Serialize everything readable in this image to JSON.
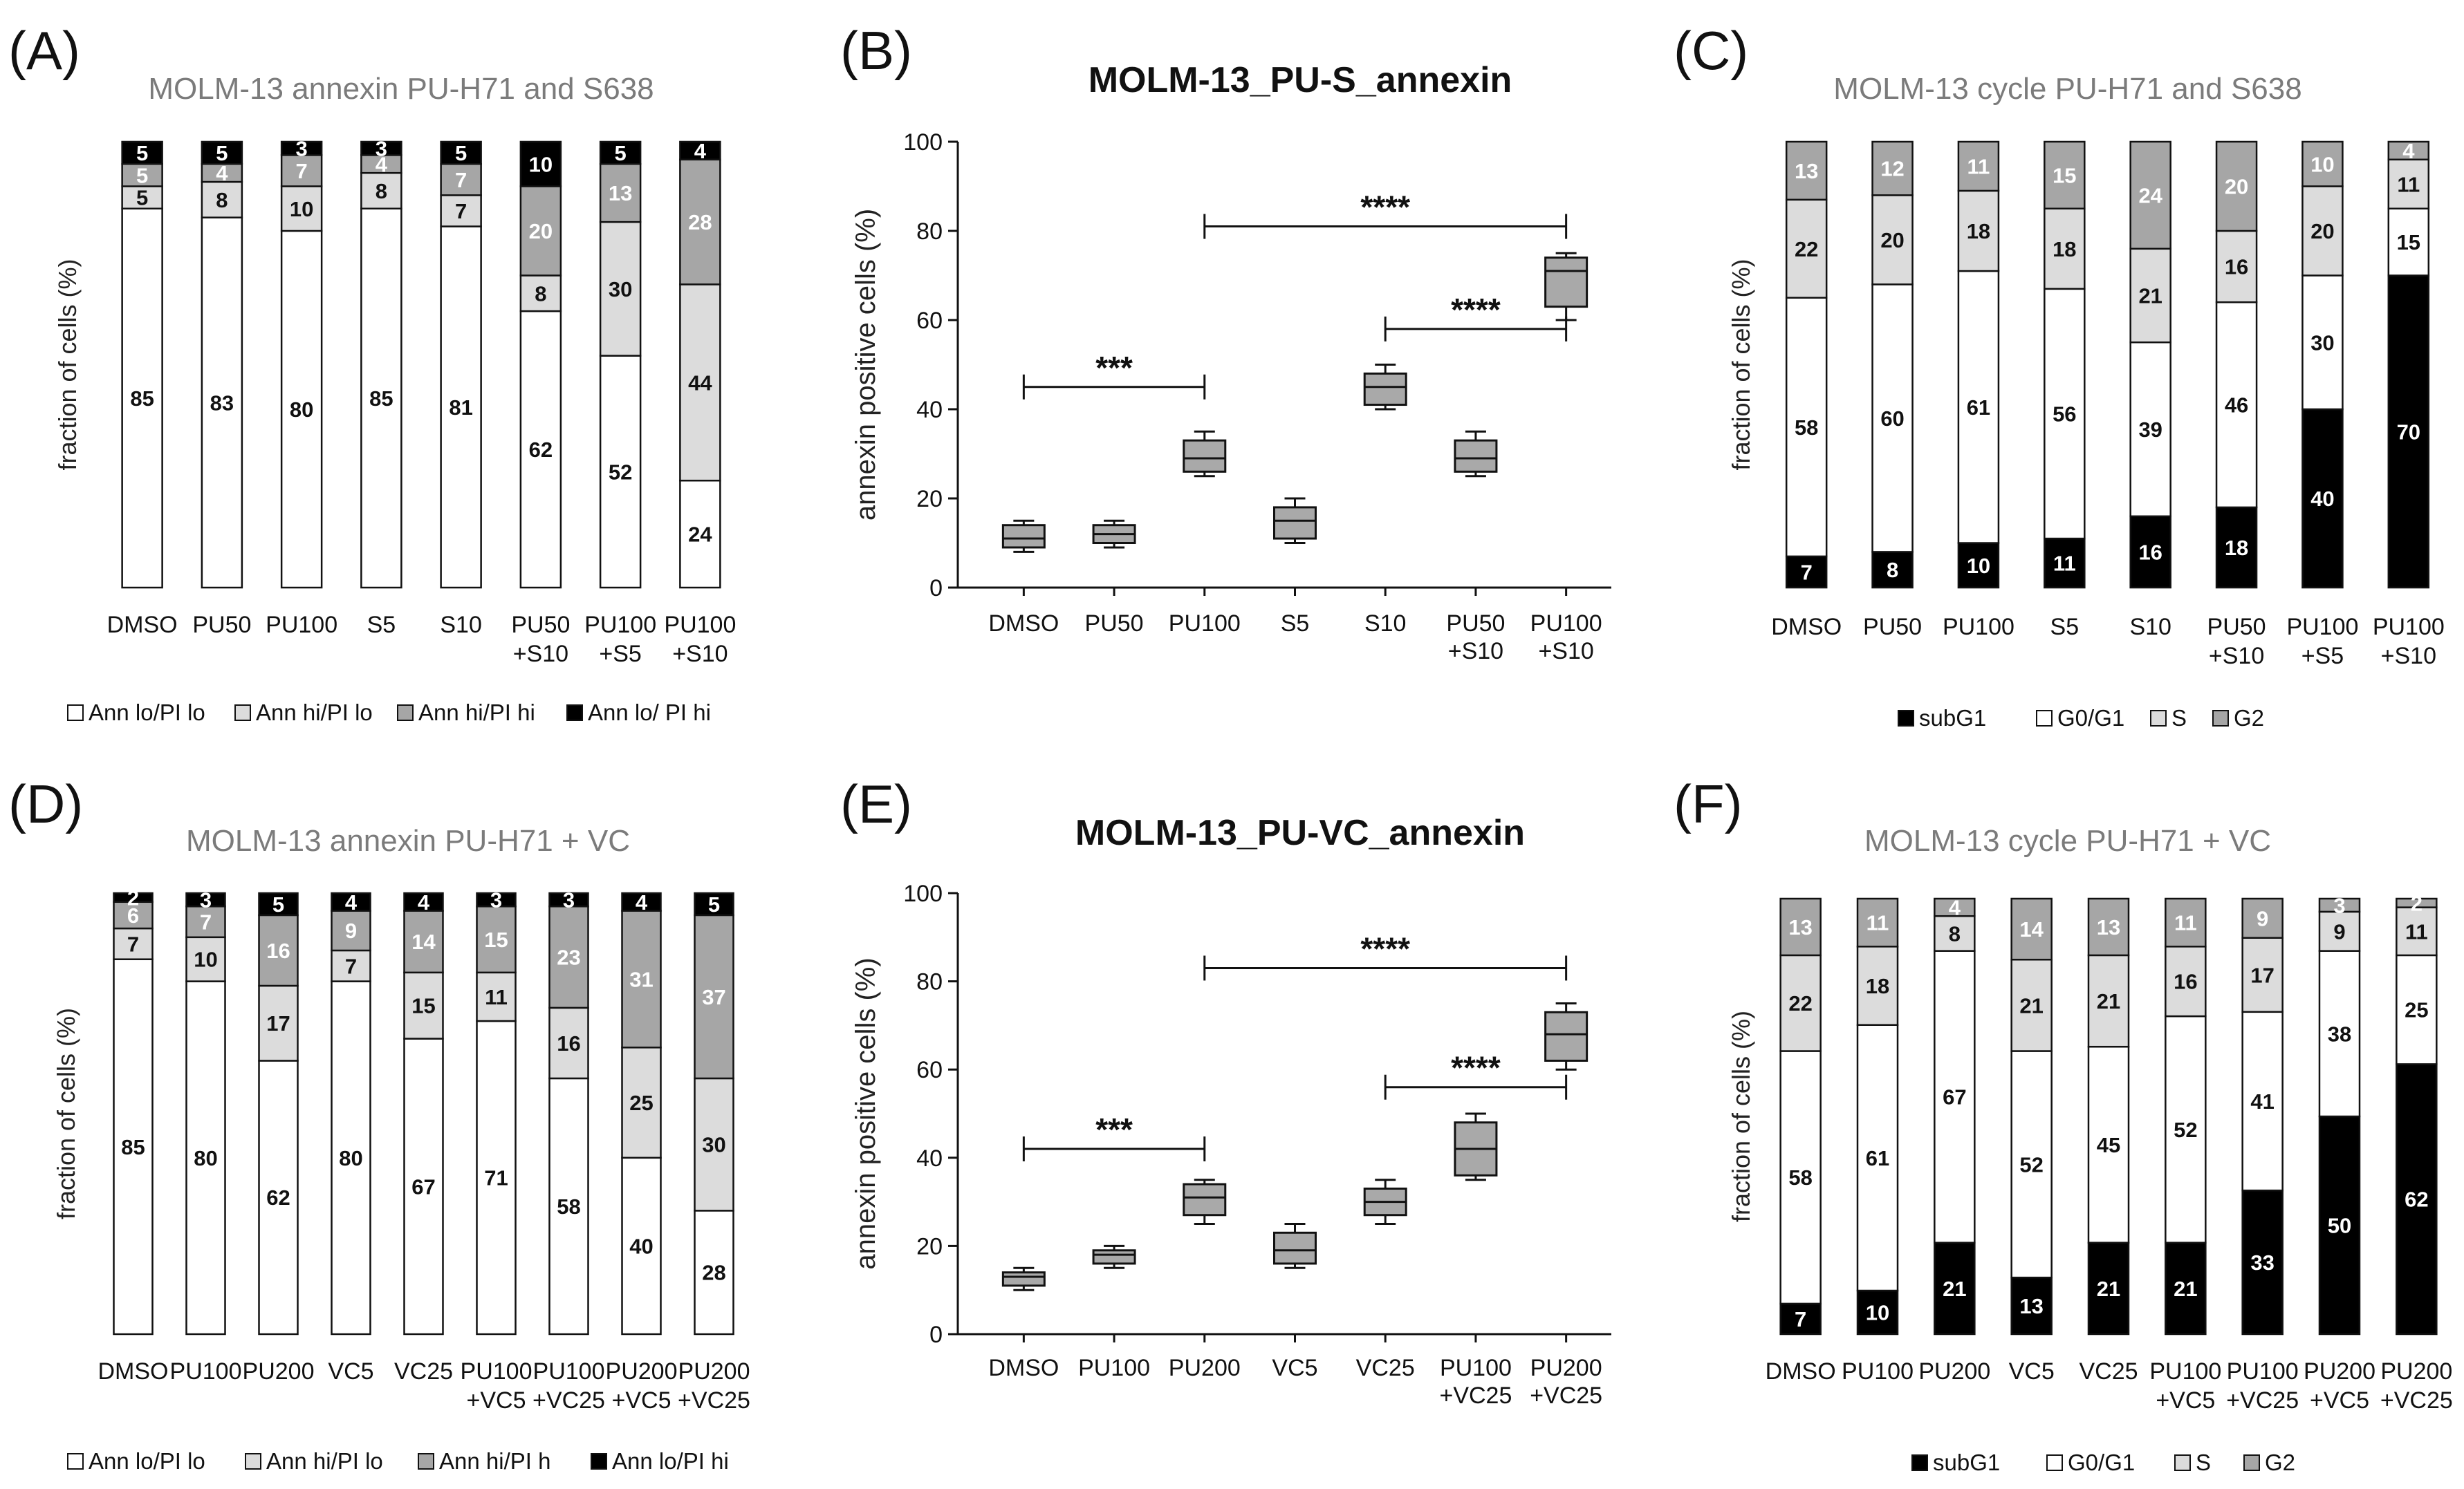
{
  "panel_letters": [
    "(A)",
    "(B)",
    "(C)",
    "(D)",
    "(E)",
    "(F)"
  ],
  "colors": {
    "white_segment": "#ffffff",
    "light_gray": "#dcdcdc",
    "mid_gray": "#a6a6a6",
    "black": "#000000",
    "box_fill": "#a9a9a9",
    "axis": "#111111"
  },
  "chart_data": [
    {
      "panel": "(A)",
      "type": "bar",
      "stacked": true,
      "title": "MOLM-13 annexin PU-H71 and S638",
      "ylabel": "fraction of cells (%)",
      "ylim": [
        0,
        100
      ],
      "categories": [
        "DMSO",
        "PU50",
        "PU100",
        "S5",
        "S10",
        "PU50\n+S10",
        "PU100\n+S5",
        "PU100\n+S10"
      ],
      "legend_position": "bottom",
      "series": [
        {
          "name": "Ann lo/PI lo",
          "color": "white",
          "values": [
            85,
            83,
            80,
            85,
            81,
            62,
            52,
            24
          ]
        },
        {
          "name": "Ann hi/PI lo",
          "color": "light",
          "values": [
            5,
            8,
            10,
            8,
            7,
            8,
            30,
            44
          ]
        },
        {
          "name": "Ann hi/PI hi",
          "color": "mid",
          "values": [
            5,
            4,
            7,
            4,
            7,
            20,
            13,
            28
          ]
        },
        {
          "name": "Ann lo/ PI hi",
          "color": "black",
          "values": [
            5,
            5,
            3,
            3,
            5,
            10,
            5,
            4
          ]
        }
      ]
    },
    {
      "panel": "(B)",
      "type": "box",
      "title": "MOLM-13_PU-S_annexin",
      "ylabel": "annexin positive cells (%)",
      "ylim": [
        0,
        100
      ],
      "yticks": [
        0,
        20,
        40,
        60,
        80,
        100
      ],
      "categories": [
        "DMSO",
        "PU50",
        "PU100",
        "S5",
        "S10",
        "PU50\n+S10",
        "PU100\n+S10"
      ],
      "boxes": [
        {
          "min": 8,
          "q1": 9,
          "median": 11,
          "q3": 14,
          "max": 15
        },
        {
          "min": 9,
          "q1": 10,
          "median": 12,
          "q3": 14,
          "max": 15
        },
        {
          "min": 25,
          "q1": 26,
          "median": 29,
          "q3": 33,
          "max": 35
        },
        {
          "min": 10,
          "q1": 11,
          "median": 15,
          "q3": 18,
          "max": 20
        },
        {
          "min": 40,
          "q1": 41,
          "median": 45,
          "q3": 48,
          "max": 50
        },
        {
          "min": 25,
          "q1": 26,
          "median": 29,
          "q3": 33,
          "max": 35
        },
        {
          "min": 60,
          "q1": 63,
          "median": 71,
          "q3": 74,
          "max": 75
        }
      ],
      "significance": [
        {
          "from": 0,
          "to": 2,
          "y": 45,
          "label": "***"
        },
        {
          "from": 2,
          "to": 6,
          "y": 81,
          "label": "****"
        },
        {
          "from": 4,
          "to": 6,
          "y": 58,
          "label": "****"
        }
      ]
    },
    {
      "panel": "(C)",
      "type": "bar",
      "stacked": true,
      "title": "MOLM-13 cycle PU-H71 and S638",
      "ylabel": "fraction of cells (%)",
      "ylim": [
        0,
        100
      ],
      "categories": [
        "DMSO",
        "PU50",
        "PU100",
        "S5",
        "S10",
        "PU50\n+S10",
        "PU100\n+S5",
        "PU100\n+S10"
      ],
      "legend_position": "bottom",
      "series": [
        {
          "name": "subG1",
          "color": "black",
          "values": [
            7,
            8,
            10,
            11,
            16,
            18,
            40,
            70
          ]
        },
        {
          "name": "G0/G1",
          "color": "white",
          "values": [
            58,
            60,
            61,
            56,
            39,
            46,
            30,
            15
          ]
        },
        {
          "name": "S",
          "color": "light",
          "values": [
            22,
            20,
            18,
            18,
            21,
            16,
            20,
            11
          ]
        },
        {
          "name": "G2",
          "color": "mid",
          "values": [
            13,
            12,
            11,
            15,
            24,
            20,
            10,
            4
          ]
        }
      ]
    },
    {
      "panel": "(D)",
      "type": "bar",
      "stacked": true,
      "title": "MOLM-13 annexin PU-H71 + VC",
      "ylabel": "fraction of cells (%)",
      "ylim": [
        0,
        100
      ],
      "categories": [
        "DMSO",
        "PU100",
        "PU200",
        "VC5",
        "VC25",
        "PU100\n+VC5",
        "PU100\n+VC25",
        "PU200\n+VC5",
        "PU200\n+VC25"
      ],
      "legend_position": "bottom",
      "series": [
        {
          "name": "Ann lo/PI lo",
          "color": "white",
          "values": [
            85,
            80,
            62,
            80,
            67,
            71,
            58,
            40,
            28
          ]
        },
        {
          "name": "Ann hi/PI lo",
          "color": "light",
          "values": [
            7,
            10,
            17,
            7,
            15,
            11,
            16,
            25,
            30
          ]
        },
        {
          "name": "Ann hi/PI h",
          "color": "mid",
          "values": [
            6,
            7,
            16,
            9,
            14,
            15,
            23,
            31,
            37
          ]
        },
        {
          "name": "Ann lo/PI hi",
          "color": "black",
          "values": [
            2,
            3,
            5,
            4,
            4,
            3,
            3,
            4,
            5
          ]
        }
      ]
    },
    {
      "panel": "(E)",
      "type": "box",
      "title": "MOLM-13_PU-VC_annexin",
      "ylabel": "annexin positive cells (%)",
      "ylim": [
        0,
        100
      ],
      "yticks": [
        0,
        20,
        40,
        60,
        80,
        100
      ],
      "categories": [
        "DMSO",
        "PU100",
        "PU200",
        "VC5",
        "VC25",
        "PU100\n+VC25",
        "PU200\n+VC25"
      ],
      "boxes": [
        {
          "min": 10,
          "q1": 11,
          "median": 13,
          "q3": 14,
          "max": 15
        },
        {
          "min": 15,
          "q1": 16,
          "median": 18,
          "q3": 19,
          "max": 20
        },
        {
          "min": 25,
          "q1": 27,
          "median": 31,
          "q3": 34,
          "max": 35
        },
        {
          "min": 15,
          "q1": 16,
          "median": 19,
          "q3": 23,
          "max": 25
        },
        {
          "min": 25,
          "q1": 27,
          "median": 30,
          "q3": 33,
          "max": 35
        },
        {
          "min": 35,
          "q1": 36,
          "median": 42,
          "q3": 48,
          "max": 50
        },
        {
          "min": 60,
          "q1": 62,
          "median": 68,
          "q3": 73,
          "max": 75
        }
      ],
      "significance": [
        {
          "from": 0,
          "to": 2,
          "y": 42,
          "label": "***"
        },
        {
          "from": 2,
          "to": 6,
          "y": 83,
          "label": "****"
        },
        {
          "from": 4,
          "to": 6,
          "y": 56,
          "label": "****"
        }
      ]
    },
    {
      "panel": "(F)",
      "type": "bar",
      "stacked": true,
      "title": "MOLM-13 cycle PU-H71 + VC",
      "ylabel": "fraction of cells (%)",
      "ylim": [
        0,
        100
      ],
      "categories": [
        "DMSO",
        "PU100",
        "PU200",
        "VC5",
        "VC25",
        "PU100\n+VC5",
        "PU100\n+VC25",
        "PU200\n+VC5",
        "PU200\n+VC25"
      ],
      "legend_position": "bottom",
      "series": [
        {
          "name": "subG1",
          "color": "black",
          "values": [
            7,
            10,
            21,
            13,
            21,
            21,
            33,
            50,
            62
          ]
        },
        {
          "name": "G0/G1",
          "color": "white",
          "values": [
            58,
            61,
            67,
            52,
            45,
            52,
            41,
            38,
            25
          ]
        },
        {
          "name": "S",
          "color": "light",
          "values": [
            22,
            18,
            8,
            21,
            21,
            16,
            17,
            9,
            11
          ]
        },
        {
          "name": "G2",
          "color": "mid",
          "values": [
            13,
            11,
            4,
            14,
            13,
            11,
            9,
            3,
            2
          ]
        }
      ]
    }
  ]
}
